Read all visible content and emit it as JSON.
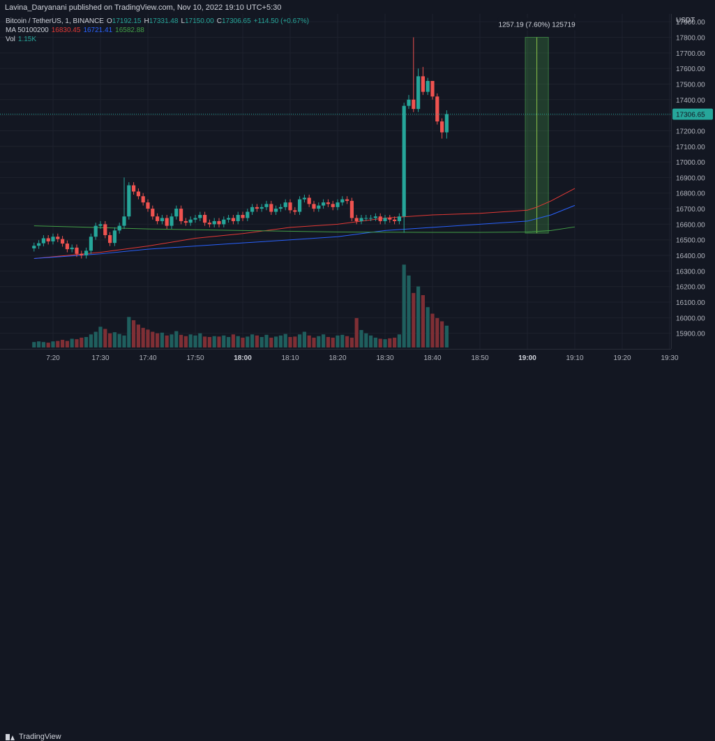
{
  "header": {
    "published": "Lavina_Daryanani published on TradingView.com, Nov 10, 2022 19:10 UTC+5:30"
  },
  "legend": {
    "symbol": "Bitcoin / TetherUS, 1, BINANCE",
    "open_label": "O",
    "open": "17192.15",
    "high_label": "H",
    "high": "17331.48",
    "low_label": "L",
    "low": "17150.00",
    "close_label": "C",
    "close": "17306.65",
    "change": "+114.50 (+0.67%)",
    "ma_label": "MA 50100200",
    "ma1": "16830.45",
    "ma2": "16721.41",
    "ma3": "16582.88",
    "vol_label": "Vol",
    "vol": "1.15K"
  },
  "colors": {
    "background": "#131722",
    "grid": "#1e222d",
    "up": "#26a69a",
    "down": "#ef5350",
    "vol_up": "#1f5f5e",
    "vol_down": "#7f2f35",
    "ma50": "#e53935",
    "ma100": "#2962ff",
    "ma200": "#43a047"
  },
  "branding": {
    "name": "TradingView"
  },
  "chart_data": {
    "type": "candlestick",
    "price_axis_label": "USDT",
    "price_ticks": [
      17900,
      17800,
      17700,
      17600,
      17500,
      17400,
      17300,
      17200,
      17100,
      17000,
      16900,
      16800,
      16700,
      16600,
      16500,
      16400,
      16300,
      16200,
      16100,
      16000,
      15900
    ],
    "price_tick_labels": [
      "17900.00",
      "17800.00",
      "17700.00",
      "17600.00",
      "17500.00",
      "17400.00",
      "17300.00",
      "17200.00",
      "17100.00",
      "17000.00",
      "16900.00",
      "16800.00",
      "16700.00",
      "16600.00",
      "16500.00",
      "16400.00",
      "16300.00",
      "16200.00",
      "16100.00",
      "16000.00",
      "15900.00"
    ],
    "price_range": [
      15800,
      17950
    ],
    "last_price": 17306.65,
    "last_price_label": "17306.65",
    "time_ticks": [
      {
        "label": "7:20",
        "minute": -80,
        "bold": false
      },
      {
        "label": "17:30",
        "minute": -70,
        "bold": false
      },
      {
        "label": "17:40",
        "minute": -60,
        "bold": false
      },
      {
        "label": "17:50",
        "minute": -50,
        "bold": false
      },
      {
        "label": "18:00",
        "minute": -40,
        "bold": true
      },
      {
        "label": "18:10",
        "minute": -30,
        "bold": false
      },
      {
        "label": "18:20",
        "minute": -20,
        "bold": false
      },
      {
        "label": "18:30",
        "minute": -10,
        "bold": false
      },
      {
        "label": "18:40",
        "minute": 0,
        "bold": false
      },
      {
        "label": "18:50",
        "minute": 10,
        "bold": false
      },
      {
        "label": "19:00",
        "minute": 20,
        "bold": true
      },
      {
        "label": "19:10",
        "minute": 30,
        "bold": false
      },
      {
        "label": "19:20",
        "minute": 40,
        "bold": false
      },
      {
        "label": "19:30",
        "minute": 50,
        "bold": false
      }
    ],
    "measure": {
      "label": "1257.19 (7.60%) 125719",
      "from_minute": 20,
      "to_minute": 24,
      "low": 16543,
      "high": 17800
    },
    "candles_close": [
      16462,
      16478,
      16510,
      16490,
      16520,
      16505,
      16476,
      16440,
      16450,
      16410,
      16400,
      16430,
      16520,
      16590,
      16600,
      16530,
      16480,
      16560,
      16590,
      16650,
      16850,
      16810,
      16780,
      16740,
      16700,
      16650,
      16620,
      16640,
      16590,
      16650,
      16700,
      16620,
      16610,
      16630,
      16640,
      16660,
      16610,
      16600,
      16620,
      16600,
      16630,
      16640,
      16620,
      16660,
      16640,
      16680,
      16710,
      16700,
      16710,
      16730,
      16680,
      16700,
      16710,
      16740,
      16690,
      16680,
      16760,
      16770,
      16730,
      16700,
      16720,
      16740,
      16730,
      16710,
      16740,
      16760,
      16750,
      16640,
      16620,
      16640,
      16640,
      16640,
      16650,
      16620,
      16640,
      16630,
      16620,
      16650,
      17360,
      17400,
      17340,
      17550,
      17450,
      17520,
      17420,
      17260,
      17190,
      17306.65
    ],
    "candles_open_first": 16445,
    "candles_high_pad": 20,
    "candles_low_pad": 20,
    "candle_specials": {
      "19": {
        "high": 16900
      },
      "78": {
        "low": 16545
      },
      "79": {
        "high": 17430
      },
      "80": {
        "high": 17800,
        "low": 17320
      },
      "81": {
        "high": 17600
      },
      "82": {
        "high": 17610
      },
      "84": {
        "high": 17440
      },
      "86": {
        "low": 17150
      },
      "87": {
        "high": 17331.48,
        "low": 17150
      }
    },
    "volumes": [
      25,
      28,
      25,
      22,
      28,
      30,
      35,
      30,
      40,
      38,
      45,
      48,
      60,
      72,
      95,
      85,
      65,
      70,
      62,
      55,
      140,
      125,
      105,
      90,
      82,
      72,
      65,
      68,
      55,
      60,
      75,
      58,
      52,
      60,
      55,
      65,
      50,
      48,
      52,
      50,
      55,
      48,
      60,
      52,
      45,
      50,
      60,
      55,
      48,
      58,
      45,
      50,
      55,
      62,
      48,
      50,
      60,
      72,
      55,
      45,
      52,
      60,
      48,
      45,
      55,
      58,
      52,
      45,
      135,
      80,
      65,
      55,
      45,
      40,
      38,
      42,
      45,
      60,
      380,
      330,
      250,
      280,
      240,
      185,
      155,
      135,
      120,
      100
    ],
    "ma50": [
      [
        -84,
        16380
      ],
      [
        -70,
        16420
      ],
      [
        -60,
        16460
      ],
      [
        -50,
        16510
      ],
      [
        -40,
        16540
      ],
      [
        -30,
        16580
      ],
      [
        -20,
        16600
      ],
      [
        -10,
        16640
      ],
      [
        0,
        16660
      ],
      [
        10,
        16670
      ],
      [
        20,
        16690
      ],
      [
        22,
        16710
      ],
      [
        25,
        16750
      ],
      [
        30,
        16830
      ]
    ],
    "ma100": [
      [
        -84,
        16380
      ],
      [
        -70,
        16410
      ],
      [
        -60,
        16440
      ],
      [
        -50,
        16460
      ],
      [
        -40,
        16480
      ],
      [
        -30,
        16500
      ],
      [
        -20,
        16520
      ],
      [
        -10,
        16560
      ],
      [
        0,
        16580
      ],
      [
        10,
        16600
      ],
      [
        20,
        16620
      ],
      [
        25,
        16660
      ],
      [
        30,
        16721
      ]
    ],
    "ma200": [
      [
        -84,
        16590
      ],
      [
        -60,
        16570
      ],
      [
        -40,
        16560
      ],
      [
        -20,
        16550
      ],
      [
        0,
        16548
      ],
      [
        10,
        16548
      ],
      [
        20,
        16550
      ],
      [
        25,
        16560
      ],
      [
        30,
        16583
      ]
    ]
  }
}
